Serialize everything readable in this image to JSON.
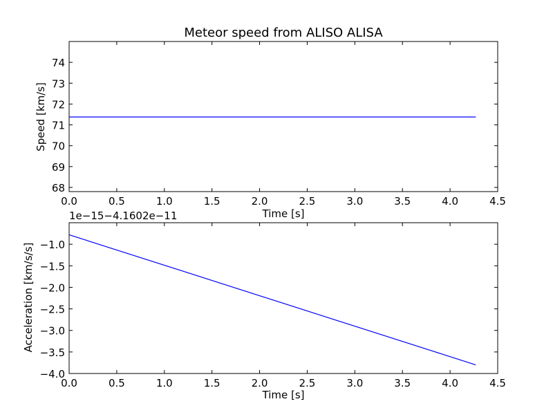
{
  "figure_title": "Meteor speed from  ALISO ALISA",
  "chart_data": [
    {
      "type": "line",
      "title": "Meteor speed from  ALISO ALISA",
      "xlabel": "Time [s]",
      "ylabel": "Speed [km/s]",
      "xlim": [
        0.0,
        4.5
      ],
      "ylim": [
        67.8,
        75.0
      ],
      "x_ticks": [
        0.0,
        0.5,
        1.0,
        1.5,
        2.0,
        2.5,
        3.0,
        3.5,
        4.0,
        4.5
      ],
      "x_tick_labels": [
        "0.0",
        "0.5",
        "1.0",
        "1.5",
        "2.0",
        "2.5",
        "3.0",
        "3.5",
        "4.0",
        "4.5"
      ],
      "y_ticks": [
        68,
        69,
        70,
        71,
        72,
        73,
        74
      ],
      "y_tick_labels": [
        "68",
        "69",
        "70",
        "71",
        "72",
        "73",
        "74"
      ],
      "grid": false,
      "series": [
        {
          "color": "#0000ff",
          "x": [
            0.0,
            4.27
          ],
          "y": [
            71.38,
            71.38
          ]
        }
      ]
    },
    {
      "type": "line",
      "title": "",
      "xlabel": "Time [s]",
      "ylabel": "Acceleration [km/s/s]",
      "offset_label": "1e−15−4.1602e−11",
      "xlim": [
        0.0,
        4.5
      ],
      "ylim": [
        -4.0,
        -0.5
      ],
      "x_ticks": [
        0.0,
        0.5,
        1.0,
        1.5,
        2.0,
        2.5,
        3.0,
        3.5,
        4.0,
        4.5
      ],
      "x_tick_labels": [
        "0.0",
        "0.5",
        "1.0",
        "1.5",
        "2.0",
        "2.5",
        "3.0",
        "3.5",
        "4.0",
        "4.5"
      ],
      "y_ticks": [
        -4.0,
        -3.5,
        -3.0,
        -2.5,
        -2.0,
        -1.5,
        -1.0
      ],
      "y_tick_labels": [
        "−4.0",
        "−3.5",
        "−3.0",
        "−2.5",
        "−2.0",
        "−1.5",
        "−1.0"
      ],
      "grid": false,
      "series": [
        {
          "color": "#0000ff",
          "x": [
            0.0,
            4.27
          ],
          "y": [
            -0.78,
            -3.8
          ]
        }
      ]
    }
  ]
}
